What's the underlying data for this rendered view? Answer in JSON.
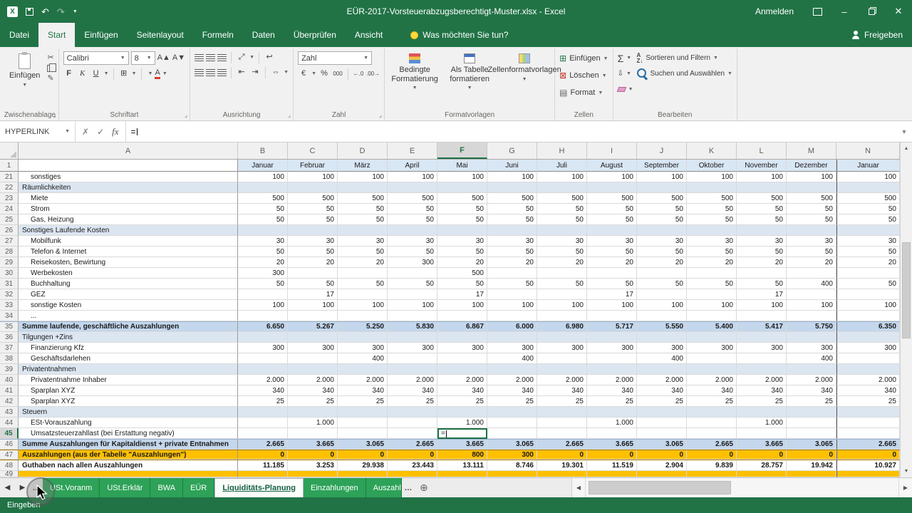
{
  "title_bar": {
    "app_title": "EÜR-2017-Vorsteuerabzugsberechtigt-Muster.xlsx - Excel",
    "sign_in": "Anmelden"
  },
  "ribbon": {
    "tabs": [
      "Datei",
      "Start",
      "Einfügen",
      "Seitenlayout",
      "Formeln",
      "Daten",
      "Überprüfen",
      "Ansicht"
    ],
    "active_tab": "Start",
    "tell_me": "Was möchten Sie tun?",
    "share_label": "Freigeben",
    "clipboard": {
      "group_label": "Zwischenablage",
      "paste_label": "Einfügen"
    },
    "font": {
      "group_label": "Schriftart",
      "font_name": "Calibri",
      "font_size": "8",
      "bold": "F",
      "italic": "K",
      "underline": "U"
    },
    "alignment": {
      "group_label": "Ausrichtung"
    },
    "number": {
      "group_label": "Zahl",
      "format": "Zahl"
    },
    "styles": {
      "group_label": "Formatvorlagen",
      "conditional": "Bedingte Formatierung",
      "table": "Als Tabelle formatieren",
      "cell_styles": "Zellenformatvorlagen"
    },
    "cells": {
      "group_label": "Zellen",
      "insert": "Einfügen",
      "delete": "Löschen",
      "format": "Format"
    },
    "editing": {
      "group_label": "Bearbeiten",
      "sort": "Sortieren und Filtern",
      "find": "Suchen und Auswählen"
    }
  },
  "formula_bar": {
    "name_box": "HYPERLINK",
    "formula": "="
  },
  "grid": {
    "columns": [
      "A",
      "B",
      "C",
      "D",
      "E",
      "F",
      "G",
      "H",
      "I",
      "J",
      "K",
      "L",
      "M",
      "N"
    ],
    "active_column": "F",
    "active_row": "45",
    "active_cell_text": "=",
    "month_row": {
      "num": "1",
      "values": [
        "Januar",
        "Februar",
        "März",
        "April",
        "Mai",
        "Juni",
        "Juli",
        "August",
        "September",
        "Oktober",
        "November",
        "Dezember",
        "Januar"
      ]
    },
    "rows": [
      {
        "num": "21",
        "label": "sonstiges",
        "type": "data",
        "indent": 1,
        "values": [
          "100",
          "100",
          "100",
          "100",
          "100",
          "100",
          "100",
          "100",
          "100",
          "100",
          "100",
          "100",
          "100"
        ]
      },
      {
        "num": "22",
        "label": "Räumlichkeiten",
        "type": "section",
        "indent": 0,
        "values": [
          "",
          "",
          "",
          "",
          "",
          "",
          "",
          "",
          "",
          "",
          "",
          "",
          ""
        ]
      },
      {
        "num": "23",
        "label": "Miete",
        "type": "data",
        "indent": 1,
        "values": [
          "500",
          "500",
          "500",
          "500",
          "500",
          "500",
          "500",
          "500",
          "500",
          "500",
          "500",
          "500",
          "500"
        ]
      },
      {
        "num": "24",
        "label": "Strom",
        "type": "data",
        "indent": 1,
        "values": [
          "50",
          "50",
          "50",
          "50",
          "50",
          "50",
          "50",
          "50",
          "50",
          "50",
          "50",
          "50",
          "50"
        ]
      },
      {
        "num": "25",
        "label": "Gas, Heizung",
        "type": "data",
        "indent": 1,
        "values": [
          "50",
          "50",
          "50",
          "50",
          "50",
          "50",
          "50",
          "50",
          "50",
          "50",
          "50",
          "50",
          "50"
        ]
      },
      {
        "num": "26",
        "label": "Sonstiges Laufende Kosten",
        "type": "section",
        "indent": 0,
        "values": [
          "",
          "",
          "",
          "",
          "",
          "",
          "",
          "",
          "",
          "",
          "",
          "",
          ""
        ]
      },
      {
        "num": "27",
        "label": "Mobilfunk",
        "type": "data",
        "indent": 1,
        "values": [
          "30",
          "30",
          "30",
          "30",
          "30",
          "30",
          "30",
          "30",
          "30",
          "30",
          "30",
          "30",
          "30"
        ]
      },
      {
        "num": "28",
        "label": "Telefon & Internet",
        "type": "data",
        "indent": 1,
        "values": [
          "50",
          "50",
          "50",
          "50",
          "50",
          "50",
          "50",
          "50",
          "50",
          "50",
          "50",
          "50",
          "50"
        ]
      },
      {
        "num": "29",
        "label": "Reisekosten, Bewirtung",
        "type": "data",
        "indent": 1,
        "values": [
          "20",
          "20",
          "20",
          "300",
          "20",
          "20",
          "20",
          "20",
          "20",
          "20",
          "20",
          "20",
          "20"
        ]
      },
      {
        "num": "30",
        "label": "Werbekosten",
        "type": "data",
        "indent": 1,
        "values": [
          "300",
          "",
          "",
          "",
          "500",
          "",
          "",
          "",
          "",
          "",
          "",
          "",
          ""
        ]
      },
      {
        "num": "31",
        "label": "Buchhaltung",
        "type": "data",
        "indent": 1,
        "values": [
          "50",
          "50",
          "50",
          "50",
          "50",
          "50",
          "50",
          "50",
          "50",
          "50",
          "50",
          "400",
          "50"
        ]
      },
      {
        "num": "32",
        "label": "GEZ",
        "type": "data",
        "indent": 1,
        "values": [
          "",
          "17",
          "",
          "",
          "17",
          "",
          "",
          "17",
          "",
          "",
          "17",
          "",
          ""
        ]
      },
      {
        "num": "33",
        "label": "sonstige Kosten",
        "type": "data",
        "indent": 1,
        "values": [
          "100",
          "100",
          "100",
          "100",
          "100",
          "100",
          "100",
          "100",
          "100",
          "100",
          "100",
          "100",
          "100"
        ]
      },
      {
        "num": "34",
        "label": "...",
        "type": "data",
        "indent": 1,
        "values": [
          "",
          "",
          "",
          "",
          "",
          "",
          "",
          "",
          "",
          "",
          "",
          "",
          ""
        ]
      },
      {
        "num": "35",
        "label": "Summe laufende, geschäftliche Auszahlungen",
        "type": "sum",
        "indent": 0,
        "values": [
          "6.650",
          "5.267",
          "5.250",
          "5.830",
          "6.867",
          "6.000",
          "6.980",
          "5.717",
          "5.550",
          "5.400",
          "5.417",
          "5.750",
          "6.350"
        ]
      },
      {
        "num": "36",
        "label": "Tilgungen +Zins",
        "type": "section",
        "indent": 0,
        "values": [
          "",
          "",
          "",
          "",
          "",
          "",
          "",
          "",
          "",
          "",
          "",
          "",
          ""
        ]
      },
      {
        "num": "37",
        "label": "Finanzierung Kfz",
        "type": "data",
        "indent": 1,
        "values": [
          "300",
          "300",
          "300",
          "300",
          "300",
          "300",
          "300",
          "300",
          "300",
          "300",
          "300",
          "300",
          "300"
        ]
      },
      {
        "num": "38",
        "label": "Geschäftsdarlehen",
        "type": "data",
        "indent": 1,
        "values": [
          "",
          "",
          "400",
          "",
          "",
          "400",
          "",
          "",
          "400",
          "",
          "",
          "400",
          ""
        ]
      },
      {
        "num": "39",
        "label": "Privatentnahmen",
        "type": "section",
        "indent": 0,
        "values": [
          "",
          "",
          "",
          "",
          "",
          "",
          "",
          "",
          "",
          "",
          "",
          "",
          ""
        ]
      },
      {
        "num": "40",
        "label": "Privatentnahme Inhaber",
        "type": "data",
        "indent": 1,
        "values": [
          "2.000",
          "2.000",
          "2.000",
          "2.000",
          "2.000",
          "2.000",
          "2.000",
          "2.000",
          "2.000",
          "2.000",
          "2.000",
          "2.000",
          "2.000"
        ]
      },
      {
        "num": "41",
        "label": "Sparplan XYZ",
        "type": "data",
        "indent": 1,
        "values": [
          "340",
          "340",
          "340",
          "340",
          "340",
          "340",
          "340",
          "340",
          "340",
          "340",
          "340",
          "340",
          "340"
        ]
      },
      {
        "num": "42",
        "label": "Sparplan XYZ",
        "type": "data",
        "indent": 1,
        "values": [
          "25",
          "25",
          "25",
          "25",
          "25",
          "25",
          "25",
          "25",
          "25",
          "25",
          "25",
          "25",
          "25"
        ]
      },
      {
        "num": "43",
        "label": "Steuern",
        "type": "section",
        "indent": 0,
        "values": [
          "",
          "",
          "",
          "",
          "",
          "",
          "",
          "",
          "",
          "",
          "",
          "",
          ""
        ]
      },
      {
        "num": "44",
        "label": "ESt-Vorauszahlung",
        "type": "data",
        "indent": 1,
        "values": [
          "",
          "1.000",
          "",
          "",
          "1.000",
          "",
          "",
          "1.000",
          "",
          "",
          "1.000",
          "",
          ""
        ]
      },
      {
        "num": "45",
        "label": "Umsatzsteuerzahllast (bei Erstattung negativ)",
        "type": "data",
        "indent": 1,
        "values": [
          "",
          "",
          "",
          "",
          "",
          "",
          "",
          "",
          "",
          "",
          "",
          "",
          ""
        ]
      },
      {
        "num": "46",
        "label": "Summe Auszahlungen für Kapitaldienst + private Entnahmen",
        "type": "sum",
        "indent": 0,
        "values": [
          "2.665",
          "3.665",
          "3.065",
          "2.665",
          "3.665",
          "3.065",
          "2.665",
          "3.665",
          "3.065",
          "2.665",
          "3.665",
          "3.065",
          "2.665"
        ]
      },
      {
        "num": "47",
        "label": "Auszahlungen (aus der Tabelle \"Auszahlungen\")",
        "type": "alert",
        "indent": 0,
        "values": [
          "0",
          "0",
          "0",
          "0",
          "800",
          "300",
          "0",
          "0",
          "0",
          "0",
          "0",
          "0",
          "0"
        ]
      },
      {
        "num": "48",
        "label": "Guthaben nach allen Auszahlungen",
        "type": "strong",
        "indent": 0,
        "values": [
          "11.185",
          "3.253",
          "29.938",
          "23.443",
          "13.111",
          "8.746",
          "19.301",
          "11.519",
          "2.904",
          "9.839",
          "28.757",
          "19.942",
          "10.927"
        ]
      },
      {
        "num": "49",
        "label": "",
        "type": "partial",
        "indent": 0,
        "values": [
          "",
          "",
          "",
          "",
          "",
          "",
          "",
          "",
          "",
          "",
          "",
          "",
          ""
        ]
      }
    ]
  },
  "sheet_tabs": {
    "left_overflow": "…",
    "right_overflow": "…",
    "tabs": [
      {
        "label": "USt.Voranm"
      },
      {
        "label": "USt.Erklär"
      },
      {
        "label": "BWA"
      },
      {
        "label": "EÜR"
      },
      {
        "label": "Liquiditäts-Planung"
      },
      {
        "label": "Einzahlungen"
      },
      {
        "label": "Auszahl"
      }
    ]
  },
  "status_bar": {
    "mode": "Eingeben"
  },
  "colors": {
    "theme_green": "#217346",
    "sheet_tab_green": "#2da258",
    "alert_orange": "#ffc000",
    "section_blue": "#dce6f1",
    "sum_blue": "#c4d7ec"
  }
}
